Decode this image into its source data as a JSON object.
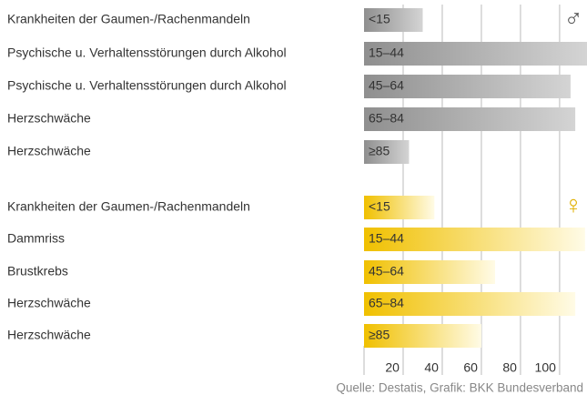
{
  "chart_data": {
    "type": "bar",
    "orientation": "horizontal",
    "age_groups": [
      "<15",
      "15–44",
      "45–64",
      "65–84",
      "≥85"
    ],
    "series": [
      {
        "name": "♂",
        "color": "#8f8f8f",
        "symbol_color": "#555555",
        "categories": [
          "Krankheiten der Gaumen-/Rachenmandeln",
          "Psychische u. Verhaltensstörungen durch Alkohol",
          "Psychische u. Verhaltensstörungen durch Alkohol",
          "Herzschwäche",
          "Herzschwäche"
        ],
        "values": [
          30,
          114,
          105.6,
          108,
          23
        ]
      },
      {
        "name": "♀",
        "color": "#f0c000",
        "symbol_color": "#e0b000",
        "categories": [
          "Krankheiten der Gaumen-/Rachenmandeln",
          "Dammriss",
          "Brustkrebs",
          "Herzschwäche",
          "Herzschwäche"
        ],
        "values": [
          36,
          113,
          67,
          108,
          60
        ]
      }
    ],
    "xlim": [
      0,
      114
    ],
    "xticks": [
      20,
      40,
      60,
      80,
      100
    ],
    "grid": true,
    "source": "Quelle: Destatis, Grafik: BKK Bundesverband"
  }
}
